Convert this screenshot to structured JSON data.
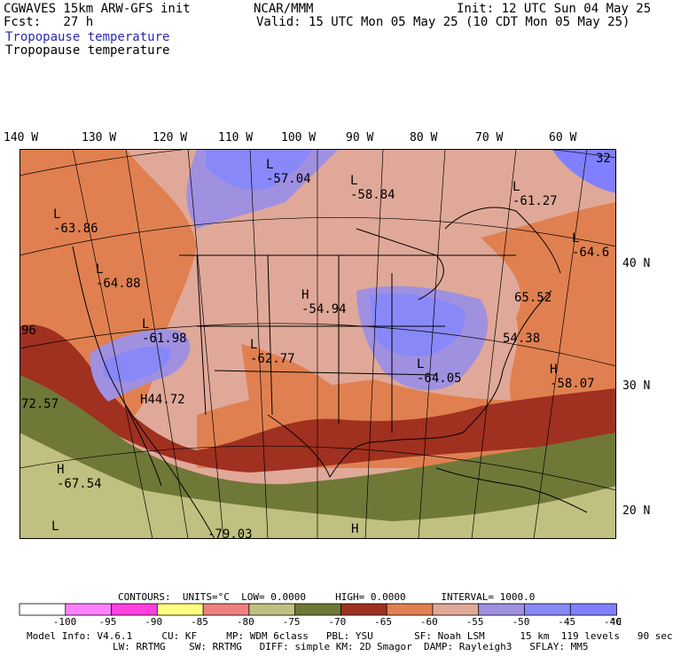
{
  "header": {
    "left_line1": "CGWAVES 15km ARW-GFS init",
    "left_line2": "Fcst:   27 h",
    "center": "NCAR/MMM",
    "right_line1": "Init: 12 UTC Sun 04 May 25",
    "right_line2": "Valid: 15 UTC Mon 05 May 25 (10 CDT Mon 05 May 25)",
    "field_title_blue": "Tropopause temperature",
    "field_title_black": "Tropopause temperature"
  },
  "longitudes": [
    "140 W",
    "130 W",
    "120 W",
    "110 W",
    "100 W",
    "90 W",
    "80 W",
    "70 W",
    "60 W"
  ],
  "latitudes": [
    "40 N",
    "30 N",
    "20 N"
  ],
  "map_labels": [
    {
      "type": "L",
      "value": "-57.04"
    },
    {
      "type": "L",
      "value": "-58.84"
    },
    {
      "type": "L",
      "value": "-61.27"
    },
    {
      "type": "",
      "value": "32"
    },
    {
      "type": "L",
      "value": "-63.86"
    },
    {
      "type": "L",
      "value": "-64.6"
    },
    {
      "type": "L",
      "value": "-64.88"
    },
    {
      "type": "H",
      "value": "-54.94"
    },
    {
      "type": "",
      "value": "65.52"
    },
    {
      "type": "L",
      "value": "-61.98"
    },
    {
      "type": "",
      "value": "96"
    },
    {
      "type": "",
      "value": "54.38"
    },
    {
      "type": "L",
      "value": "-62.77"
    },
    {
      "type": "L",
      "value": "-64.05"
    },
    {
      "type": "H",
      "value": "-58.07"
    },
    {
      "type": "",
      "value": "72.57"
    },
    {
      "type": "H",
      "value": "44.72"
    },
    {
      "type": "H",
      "value": "-67.54"
    },
    {
      "type": "",
      "value": "-79.03"
    },
    {
      "type": "H",
      "value": ""
    },
    {
      "type": "L",
      "value": ""
    }
  ],
  "contours_info": {
    "contours_label": "CONTOURS:",
    "units": "UNITS=°C",
    "low_label": "LOW=",
    "low": "0.0000",
    "high_label": "HIGH=",
    "high": "0.0000",
    "interval_label": "INTERVAL=",
    "interval": "1000.0"
  },
  "colorbar": {
    "colors": [
      "#ffffff",
      "#ff80ff",
      "#ff40e0",
      "#ffff80",
      "#f08080",
      "#c0c080",
      "#707838",
      "#a03020",
      "#e08050",
      "#e0a898",
      "#a090e0",
      "#8888f8",
      "#8080ff"
    ],
    "ticks": [
      "-100",
      "-95",
      "-90",
      "-85",
      "-80",
      "-75",
      "-70",
      "-65",
      "-60",
      "-55",
      "-50",
      "-45",
      "-40"
    ],
    "unit": "°C"
  },
  "model_info": {
    "line1": [
      "Model Info: V4.6.1",
      "CU: KF",
      "MP: WDM 6class",
      "PBL: YSU",
      "SF: Noah LSM",
      "15 km",
      "119 levels",
      "90 sec"
    ],
    "line2": [
      "LW: RRTMG",
      "SW: RRTMG",
      "DIFF: simple",
      "KM: 2D Smagor",
      "DAMP: Rayleigh3",
      "SFLAY: MM5"
    ]
  }
}
